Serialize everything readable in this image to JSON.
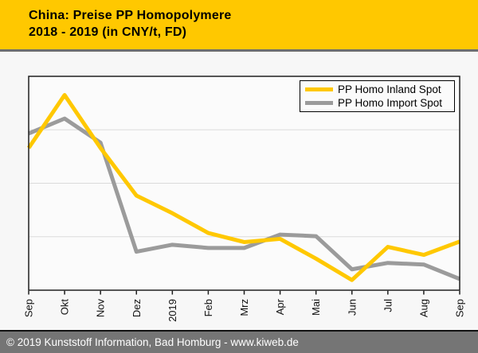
{
  "header": {
    "title_line1": "China: Preise PP Homopolymere",
    "title_line2": "2018 - 2019 (in CNY/t, FD)"
  },
  "chart_data": {
    "type": "line",
    "title": "China: Preise PP Homopolymere 2018 - 2019 (in CNY/t, FD)",
    "categories": [
      "Sep",
      "Okt",
      "Nov",
      "Dez",
      "2019",
      "Feb",
      "Mrz",
      "Apr",
      "Mai",
      "Jun",
      "Jul",
      "Aug",
      "Sep"
    ],
    "series": [
      {
        "name": "PP Homo Inland Spot",
        "color": "#FFC800",
        "values": [
          2.66,
          3.65,
          2.66,
          1.77,
          1.44,
          1.07,
          0.9,
          0.96,
          0.59,
          0.19,
          0.81,
          0.66,
          0.91
        ]
      },
      {
        "name": "PP Homo Import Spot",
        "color": "#9B9B9B",
        "values": [
          2.93,
          3.21,
          2.76,
          0.72,
          0.85,
          0.79,
          0.79,
          1.04,
          1.01,
          0.39,
          0.51,
          0.48,
          0.21
        ]
      }
    ],
    "xlabel": "",
    "ylabel": "",
    "ylim": [
      0,
      4
    ],
    "gridlines_y": [
      1,
      2,
      3
    ],
    "grid": "horizontal-only",
    "y_tick_labels_visible": false,
    "y_note": "No numeric y-axis labels are shown in the chart; series values are expressed in relative gridline units (1 unit = one gridline interval above the x-axis, plot top = 4)",
    "x_label_rotation": -90,
    "legend_position": "top-right"
  },
  "footer": {
    "text": "© 2019 Kunststoff Information, Bad Homburg - www.kiweb.de"
  },
  "colors": {
    "header_bg": "#FFC800",
    "header_text": "#000000",
    "divider": "#6E6E6E",
    "page_bg": "#F7F7F7",
    "plot_bg": "#FBFBFB",
    "plot_border": "#1F1F1F",
    "gridline": "#DBDBDB",
    "legend_bg": "#FBFBFB",
    "legend_border": "#000000",
    "footer_bg": "#757575",
    "footer_text": "#FFFFFF"
  }
}
